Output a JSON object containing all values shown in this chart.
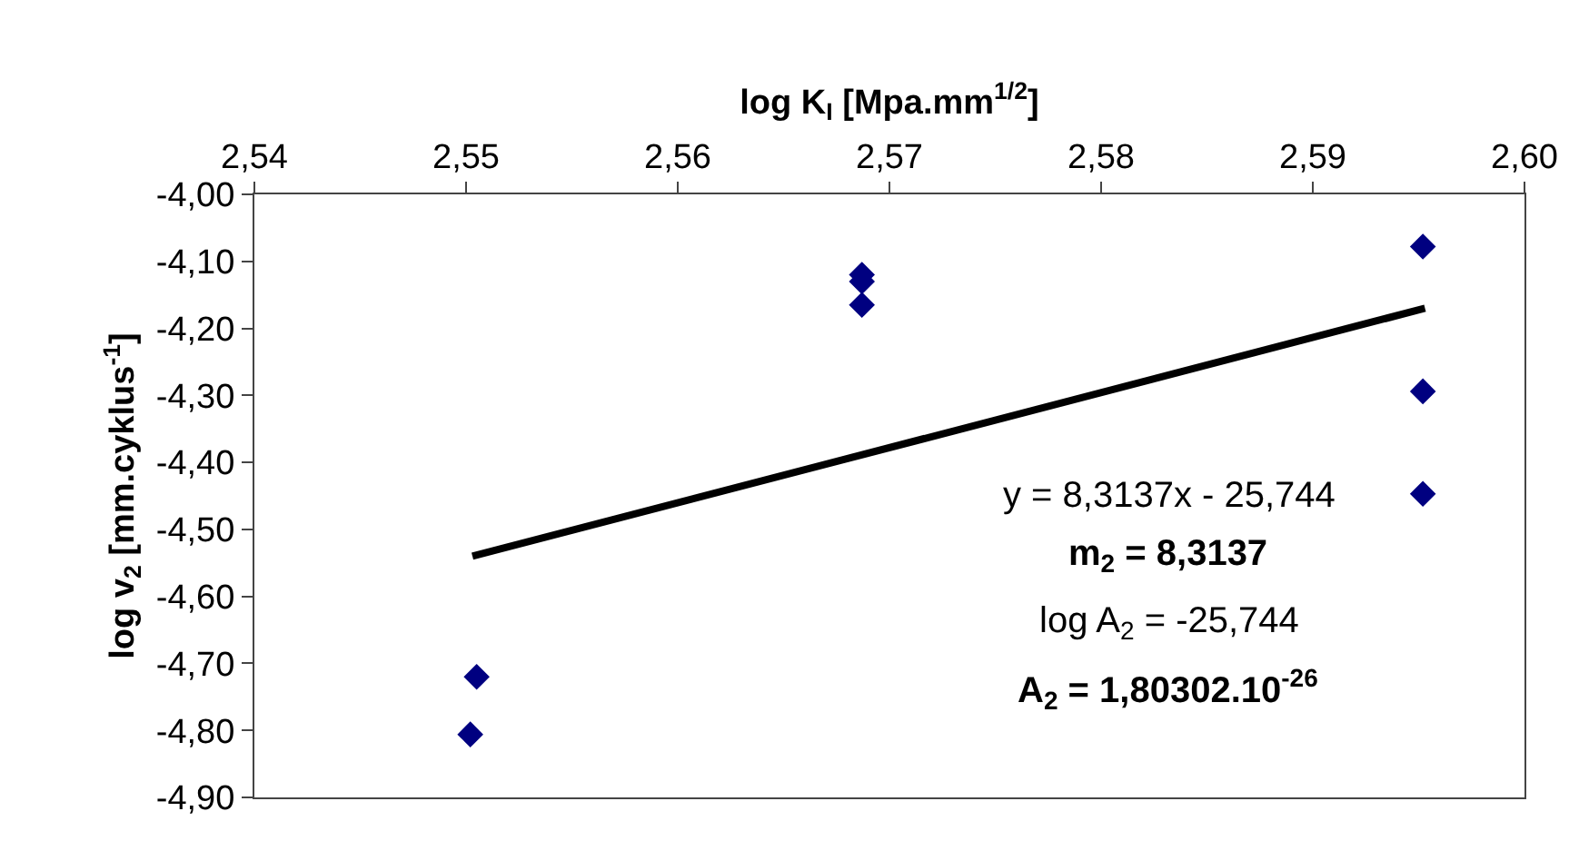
{
  "chart_data": {
    "type": "scatter",
    "xlabel": "log K$_{I}$ [Mpa.mm$^{1/2}$]",
    "ylabel": "log v$_{2}$ [mm.cyklus$^{-1}$]",
    "series": [
      {
        "color": "#000080",
        "marker": "diamond",
        "x": [
          2.5502,
          2.5505,
          2.5687,
          2.5687,
          2.5687,
          2.5952,
          2.5952,
          2.5952
        ],
        "values": [
          -4.806,
          -4.72,
          -4.12,
          -4.13,
          -4.165,
          -4.078,
          -4.294,
          -4.447
        ]
      },
      {
        "type": "line",
        "color": "#000000",
        "marker": "none",
        "x": [
          2.5503,
          2.5953
        ],
        "values": [
          -4.54,
          -4.17
        ]
      }
    ],
    "xlim": [
      2.54,
      2.6
    ],
    "xticks": [
      {
        "value": 2.54,
        "label": "2,54"
      },
      {
        "value": 2.55,
        "label": "2,55"
      },
      {
        "value": 2.56,
        "label": "2,56"
      },
      {
        "value": 2.57,
        "label": "2,57"
      },
      {
        "value": 2.58,
        "label": "2,58"
      },
      {
        "value": 2.59,
        "label": "2,59"
      },
      {
        "value": 2.6,
        "label": "2,60"
      }
    ],
    "ylim": [
      -4.9,
      -4.0
    ],
    "yticks": [
      {
        "value": -4.0,
        "label": "-4,00"
      },
      {
        "value": -4.1,
        "label": "-4,10"
      },
      {
        "value": -4.2,
        "label": "-4,20"
      },
      {
        "value": -4.3,
        "label": "-4,30"
      },
      {
        "value": -4.4,
        "label": "-4,40"
      },
      {
        "value": -4.5,
        "label": "-4,50"
      },
      {
        "value": -4.6,
        "label": "-4,60"
      },
      {
        "value": -4.7,
        "label": "-4,70"
      },
      {
        "value": -4.8,
        "label": "-4,80"
      },
      {
        "value": -4.9,
        "label": "-4,90"
      }
    ],
    "annotations": [
      "y = 8,3137x - 25,744",
      "m$_{2}$ = 8,3137",
      "log A$_{2}$ = -25,744",
      "A$_{2}$ = 1,80302.10$^{-26}$"
    ]
  }
}
